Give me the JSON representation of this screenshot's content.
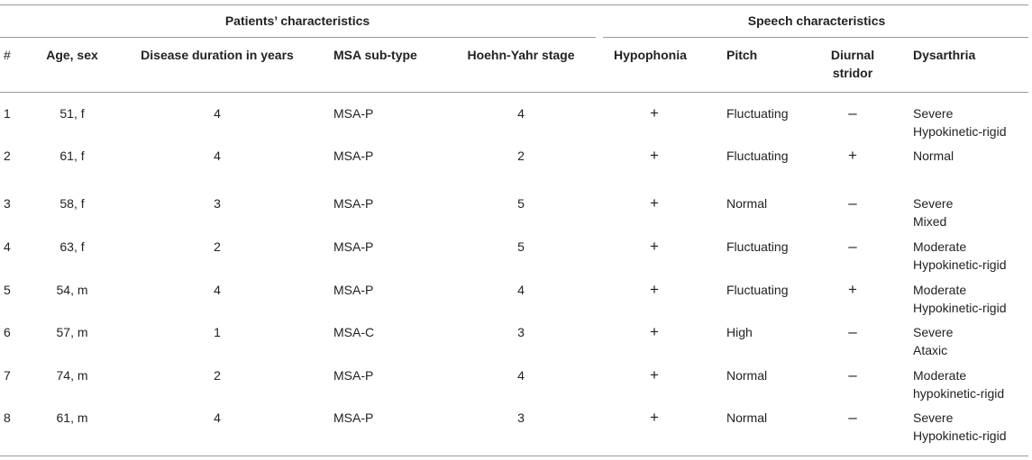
{
  "group_headers": {
    "patients": "Patients’ characteristics",
    "speech": "Speech characteristics"
  },
  "columns": {
    "num": "#",
    "age_sex": "Age, sex",
    "duration": "Disease duration in years",
    "subtype": "MSA sub-type",
    "hy": "Hoehn-Yahr stage",
    "hypophonia": "Hypophonia",
    "pitch": "Pitch",
    "stridor_l1": "Diurnal",
    "stridor_l2": "stridor",
    "dysarthria": "Dysarthria"
  },
  "rows": [
    {
      "num": "1",
      "age_sex": "51, f",
      "duration": "4",
      "subtype": "MSA-P",
      "hy": "4",
      "hypophonia": "+",
      "pitch": "Fluctuating",
      "stridor": "–",
      "dys1": "Severe",
      "dys2": "Hypokinetic-rigid"
    },
    {
      "num": "2",
      "age_sex": "61, f",
      "duration": "4",
      "subtype": "MSA-P",
      "hy": "2",
      "hypophonia": "+",
      "pitch": "Fluctuating",
      "stridor": "+",
      "dys1": "Normal",
      "dys2": ""
    },
    {
      "num": "3",
      "age_sex": "58, f",
      "duration": "3",
      "subtype": "MSA-P",
      "hy": "5",
      "hypophonia": "+",
      "pitch": "Normal",
      "stridor": "–",
      "dys1": "Severe",
      "dys2": "Mixed"
    },
    {
      "num": "4",
      "age_sex": "63, f",
      "duration": "2",
      "subtype": "MSA-P",
      "hy": "5",
      "hypophonia": "+",
      "pitch": "Fluctuating",
      "stridor": "–",
      "dys1": "Moderate",
      "dys2": "Hypokinetic-rigid"
    },
    {
      "num": "5",
      "age_sex": "54, m",
      "duration": "4",
      "subtype": "MSA-P",
      "hy": "4",
      "hypophonia": "+",
      "pitch": "Fluctuating",
      "stridor": "+",
      "dys1": "Moderate",
      "dys2": "Hypokinetic-rigid"
    },
    {
      "num": "6",
      "age_sex": "57, m",
      "duration": "1",
      "subtype": "MSA-C",
      "hy": "3",
      "hypophonia": "+",
      "pitch": "High",
      "stridor": "–",
      "dys1": "Severe",
      "dys2": "Ataxic"
    },
    {
      "num": "7",
      "age_sex": "74, m",
      "duration": "2",
      "subtype": "MSA-P",
      "hy": "4",
      "hypophonia": "+",
      "pitch": "Normal",
      "stridor": "–",
      "dys1": "Moderate",
      "dys2": "hypokinetic-rigid"
    },
    {
      "num": "8",
      "age_sex": "61, m",
      "duration": "4",
      "subtype": "MSA-P",
      "hy": "3",
      "hypophonia": "+",
      "pitch": "Normal",
      "stridor": "–",
      "dys1": "Severe",
      "dys2": "Hypokinetic-rigid"
    }
  ]
}
